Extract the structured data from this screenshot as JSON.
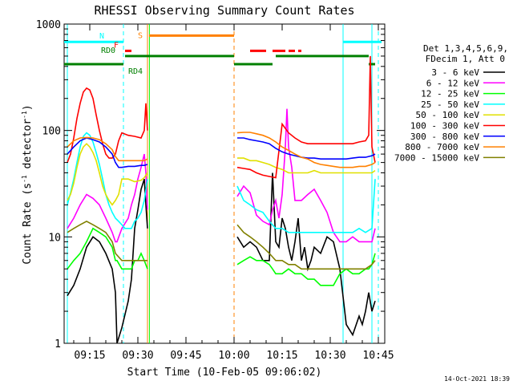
{
  "chart_data": {
    "type": "line",
    "title": "RHESSI Observing Summary Count Rates",
    "xlabel": "Start Time (10-Feb-05 09:06:02)",
    "ylabel_main": "Count Rate (s",
    "ylabel_sup1": "-1",
    "ylabel_mid": " detector",
    "ylabel_sup2": "-1",
    "ylabel_end": ")",
    "yscale": "log",
    "xlim": [
      6.0,
      106.0
    ],
    "ylim": [
      1,
      1000
    ],
    "x_units": "minutes after 09:06:02",
    "x_ticks": [
      {
        "v": 14,
        "label": "09:15"
      },
      {
        "v": 29,
        "label": "09:30"
      },
      {
        "v": 44,
        "label": "09:45"
      },
      {
        "v": 59,
        "label": "10:00"
      },
      {
        "v": 74,
        "label": "10:15"
      },
      {
        "v": 89,
        "label": "10:30"
      },
      {
        "v": 104,
        "label": "10:45"
      }
    ],
    "y_ticks": [
      {
        "v": 1,
        "label": "1"
      },
      {
        "v": 10,
        "label": "10"
      },
      {
        "v": 100,
        "label": "100"
      },
      {
        "v": 1000,
        "label": "1000"
      }
    ],
    "legend_header": [
      "Det 1,3,4,5,6,9,",
      "FDecim 1, Att 0"
    ],
    "legend_position": "right",
    "timestamp": "14-Oct-2021 18:39",
    "series": [
      {
        "name": "3 - 6 keV",
        "color": "#000000",
        "x": [
          7,
          9,
          11,
          13,
          15,
          17,
          19,
          21,
          22,
          22.5,
          24,
          26,
          27,
          28,
          29,
          30,
          31,
          31.5,
          32,
          60,
          62,
          64,
          66,
          68,
          70,
          71,
          72,
          73,
          74,
          75,
          76,
          77,
          78,
          79,
          80,
          81,
          82,
          83,
          84,
          86,
          88,
          90,
          92,
          94,
          96,
          98,
          99,
          100,
          101,
          102,
          103
        ],
        "y": [
          2.8,
          3.5,
          5,
          8,
          10,
          9,
          7,
          5,
          3,
          1,
          1.4,
          2.5,
          4,
          12,
          18,
          28,
          35,
          20,
          12,
          10,
          8,
          9,
          8,
          6,
          6,
          40,
          9,
          8,
          15,
          12,
          8,
          6,
          9,
          15,
          6,
          8,
          5,
          6,
          8,
          7,
          10,
          9,
          5,
          1.5,
          1.2,
          1.8,
          1.5,
          2,
          3,
          2,
          2.5
        ]
      },
      {
        "name": "6 - 12 keV",
        "color": "#ff00ff",
        "x": [
          7,
          9,
          11,
          13,
          15,
          17,
          19,
          21,
          22,
          22.5,
          24,
          26,
          27,
          28,
          29,
          30,
          31,
          31.5,
          32,
          60,
          62,
          64,
          66,
          68,
          70,
          71,
          72,
          73,
          74,
          75,
          75.5,
          76,
          77,
          78,
          80,
          82,
          84,
          86,
          88,
          90,
          92,
          94,
          96,
          98,
          100,
          101,
          102,
          103
        ],
        "y": [
          12,
          15,
          20,
          25,
          23,
          20,
          15,
          11,
          9,
          9,
          12,
          15,
          20,
          25,
          35,
          45,
          60,
          40,
          18,
          24,
          30,
          26,
          16,
          14,
          13,
          18,
          22,
          15,
          25,
          70,
          160,
          70,
          45,
          22,
          22,
          25,
          28,
          22,
          17,
          11,
          9,
          9,
          10,
          9,
          9,
          9,
          9,
          12
        ]
      },
      {
        "name": "12 - 25 keV",
        "color": "#00ff00",
        "x": [
          7,
          9,
          11,
          13,
          15,
          17,
          19,
          21,
          22,
          22.5,
          24,
          26,
          27,
          28,
          29,
          30,
          31,
          32,
          60,
          62,
          64,
          66,
          68,
          70,
          71,
          72,
          74,
          76,
          78,
          80,
          82,
          84,
          86,
          88,
          90,
          92,
          94,
          96,
          98,
          100,
          101,
          102,
          103
        ],
        "y": [
          5,
          6,
          7,
          9,
          12,
          11,
          10,
          8,
          6,
          6,
          5,
          5,
          5,
          6,
          6,
          7,
          6,
          5,
          5.5,
          6,
          6.5,
          6,
          6,
          5.5,
          5,
          4.5,
          4.5,
          5,
          4.5,
          4.5,
          4,
          4,
          3.5,
          3.5,
          3.5,
          4.5,
          5,
          4.5,
          4.5,
          5,
          5,
          5.5,
          7
        ]
      },
      {
        "name": "25 - 50 keV",
        "color": "#00ffff",
        "x": [
          7,
          8,
          9,
          10,
          11,
          12,
          13,
          14,
          15,
          16,
          17,
          18,
          19,
          20,
          21,
          22,
          23,
          24,
          25,
          26,
          27,
          28,
          29,
          30,
          31,
          32,
          60,
          62,
          64,
          66,
          68,
          70,
          72,
          74,
          76,
          78,
          80,
          82,
          84,
          86,
          88,
          90,
          92,
          94,
          96,
          98,
          100,
          102,
          103
        ],
        "y": [
          20,
          26,
          35,
          50,
          70,
          88,
          95,
          90,
          78,
          62,
          48,
          35,
          25,
          20,
          17,
          15,
          14,
          13,
          12,
          12,
          12,
          14,
          15,
          17,
          22,
          35,
          30,
          22,
          20,
          18,
          17,
          14,
          12,
          12,
          11,
          11,
          11,
          11,
          11,
          11,
          11,
          11,
          11,
          11,
          11,
          12,
          11,
          12,
          35
        ]
      },
      {
        "name": "50 - 100 keV",
        "color": "#e0e000",
        "x": [
          7,
          8,
          9,
          10,
          11,
          12,
          13,
          14,
          15,
          16,
          17,
          18,
          19,
          20,
          21,
          22,
          23,
          24,
          26,
          28,
          30,
          31,
          32,
          60,
          62,
          64,
          66,
          68,
          70,
          72,
          74,
          76,
          78,
          80,
          82,
          84,
          86,
          88,
          90,
          92,
          94,
          96,
          98,
          100,
          102,
          103
        ],
        "y": [
          22,
          25,
          32,
          45,
          60,
          70,
          75,
          70,
          62,
          52,
          40,
          30,
          25,
          22,
          20,
          22,
          25,
          35,
          35,
          33,
          34,
          36,
          40,
          55,
          55,
          52,
          52,
          50,
          48,
          45,
          43,
          40,
          40,
          40,
          40,
          42,
          40,
          40,
          40,
          40,
          40,
          40,
          40,
          40,
          40,
          42
        ]
      },
      {
        "name": "100 - 300 keV",
        "color": "#ff0000",
        "x": [
          7,
          8,
          9,
          10,
          11,
          12,
          13,
          14,
          15,
          16,
          17,
          18,
          19,
          20,
          21,
          22,
          23,
          24,
          26,
          28,
          30,
          31,
          31.5,
          32,
          60,
          62,
          64,
          66,
          68,
          70,
          72,
          74,
          76,
          78,
          80,
          82,
          84,
          86,
          88,
          90,
          92,
          94,
          96,
          98,
          100,
          101,
          101.5,
          102,
          103
        ],
        "y": [
          50,
          60,
          85,
          130,
          180,
          230,
          250,
          240,
          200,
          140,
          100,
          75,
          60,
          55,
          55,
          60,
          80,
          95,
          90,
          88,
          85,
          100,
          180,
          100,
          45,
          44,
          43,
          40,
          38,
          37,
          36,
          115,
          95,
          85,
          78,
          75,
          75,
          75,
          75,
          75,
          75,
          75,
          75,
          78,
          80,
          90,
          500,
          70,
          50
        ]
      },
      {
        "name": "300 - 800 keV",
        "color": "#0000ff",
        "x": [
          7,
          9,
          11,
          13,
          15,
          17,
          19,
          21,
          22,
          23,
          24,
          26,
          28,
          30,
          31,
          32,
          60,
          62,
          64,
          66,
          68,
          70,
          72,
          74,
          76,
          78,
          80,
          82,
          84,
          86,
          88,
          90,
          92,
          94,
          96,
          98,
          100,
          102,
          103
        ],
        "y": [
          60,
          70,
          80,
          85,
          82,
          78,
          70,
          60,
          50,
          45,
          45,
          46,
          46,
          47,
          47,
          48,
          85,
          85,
          82,
          80,
          78,
          75,
          68,
          63,
          60,
          58,
          56,
          55,
          55,
          54,
          54,
          54,
          54,
          54,
          55,
          56,
          56,
          58,
          60
        ]
      },
      {
        "name": "800 - 7000 keV",
        "color": "#ff8000",
        "x": [
          7,
          9,
          11,
          13,
          15,
          17,
          19,
          21,
          22,
          23,
          24,
          26,
          28,
          30,
          31,
          32,
          60,
          62,
          64,
          66,
          68,
          70,
          72,
          74,
          76,
          78,
          80,
          82,
          84,
          86,
          88,
          90,
          92,
          94,
          96,
          98,
          100,
          102,
          103
        ],
        "y": [
          70,
          80,
          85,
          86,
          85,
          82,
          75,
          66,
          57,
          52,
          52,
          52,
          52,
          52,
          52,
          54,
          95,
          96,
          96,
          93,
          90,
          85,
          78,
          70,
          65,
          60,
          56,
          54,
          50,
          48,
          47,
          46,
          45,
          45,
          45,
          46,
          46,
          48,
          50
        ]
      },
      {
        "name": "7000 - 15000 keV",
        "color": "#808000",
        "x": [
          7,
          9,
          11,
          13,
          15,
          17,
          19,
          21,
          22,
          24,
          26,
          28,
          30,
          32,
          60,
          62,
          64,
          66,
          68,
          70,
          72,
          74,
          76,
          78,
          80,
          82,
          84,
          86,
          88,
          90,
          92,
          94,
          96,
          98,
          100,
          102,
          103
        ],
        "y": [
          11,
          12,
          13,
          14,
          13,
          12,
          11,
          9,
          7,
          6,
          6,
          6,
          6,
          6,
          13,
          11,
          10,
          9,
          8,
          7,
          6,
          6,
          5.5,
          5.5,
          5,
          5,
          5,
          5,
          5,
          5,
          5,
          5,
          5,
          5,
          5,
          5.5,
          6
        ]
      }
    ],
    "time_bars": [
      {
        "label": "N",
        "color": "#00ffff",
        "y": 680,
        "ranges": [
          [
            6,
            24.5
          ],
          [
            93,
            105
          ]
        ]
      },
      {
        "label": "S",
        "color": "#ff8000",
        "y": 780,
        "ranges": [
          [
            32.5,
            59
          ]
        ]
      },
      {
        "label": "F",
        "color": "#ff0000",
        "y": 560,
        "ranges": [
          [
            25,
            27
          ],
          [
            64,
            69
          ],
          [
            71,
            75
          ],
          [
            76,
            78
          ],
          [
            79,
            80
          ]
        ]
      },
      {
        "label": "RD0",
        "color": "#008000",
        "y": 500,
        "ranges": [
          [
            25,
            59
          ],
          [
            72,
            101
          ]
        ]
      },
      {
        "label": "RD4",
        "color": "#008000",
        "y": 420,
        "ranges": [
          [
            6,
            24.5
          ],
          [
            59,
            71
          ],
          [
            101,
            103
          ]
        ]
      }
    ],
    "v_lines": [
      {
        "x": 7,
        "color": "#00ffff",
        "dashed": false
      },
      {
        "x": 24.5,
        "color": "#00ffff",
        "dashed": true
      },
      {
        "x": 32,
        "color": "#ff8000",
        "dashed": false
      },
      {
        "x": 32.6,
        "color": "#00ff00",
        "dashed": false
      },
      {
        "x": 59,
        "color": "#ff8000",
        "dashed": true
      },
      {
        "x": 93,
        "color": "#00ffff",
        "dashed": false
      },
      {
        "x": 102,
        "color": "#00ffff",
        "dashed": false
      },
      {
        "x": 104,
        "color": "#00ffff",
        "dashed": true
      }
    ]
  }
}
